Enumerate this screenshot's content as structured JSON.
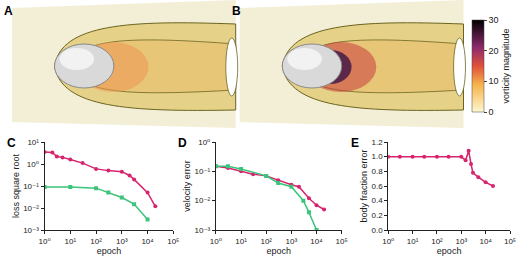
{
  "renderings": [
    {
      "label": "A"
    },
    {
      "label": "B"
    }
  ],
  "colorbar": {
    "label": "vorticity magnitude",
    "range": [
      0,
      30
    ],
    "ticks": [
      0,
      10,
      20,
      30
    ]
  },
  "chart_data": [
    {
      "type": "line",
      "title": "C",
      "x_label": "epoch",
      "y_label": "loss square root",
      "log": true,
      "grid": false,
      "xlim": [
        1,
        100000
      ],
      "xticks": [
        {
          "value": 1,
          "label": "10⁰"
        },
        {
          "value": 10,
          "label": "10¹"
        },
        {
          "value": 100,
          "label": "10²"
        },
        {
          "value": 1000,
          "label": "10³"
        },
        {
          "value": 10000,
          "label": "10⁴"
        },
        {
          "value": 100000,
          "label": "10⁵"
        }
      ],
      "ylim": [
        0.001,
        10
      ],
      "yticks": [
        {
          "value": 0.001,
          "label": "10⁻³"
        },
        {
          "value": 0.01,
          "label": "10⁻²"
        },
        {
          "value": 0.1,
          "label": "10⁻¹"
        },
        {
          "value": 1,
          "label": "10⁰"
        },
        {
          "value": 10,
          "label": "10¹"
        }
      ],
      "series": [
        {
          "color": "#d6246e",
          "marker": "circle",
          "x": [
            1,
            2,
            3,
            5,
            10,
            30,
            100,
            300,
            1000,
            2000,
            3000,
            10000,
            20000
          ],
          "values": [
            3.5,
            3.3,
            2.2,
            2.0,
            1.6,
            1.1,
            0.6,
            0.5,
            0.45,
            0.3,
            0.2,
            0.05,
            0.012
          ]
        },
        {
          "color": "#3cc47a",
          "marker": "square",
          "x": [
            1,
            10,
            100,
            300,
            1000,
            3000,
            10000
          ],
          "values": [
            0.09,
            0.09,
            0.08,
            0.05,
            0.03,
            0.015,
            0.003
          ]
        }
      ]
    },
    {
      "type": "line",
      "title": "D",
      "x_label": "epoch",
      "y_label": "velocity error",
      "log": true,
      "grid": false,
      "xlim": [
        1,
        100000
      ],
      "xticks": [
        {
          "value": 1,
          "label": "10⁰"
        },
        {
          "value": 10,
          "label": "10¹"
        },
        {
          "value": 100,
          "label": "10²"
        },
        {
          "value": 1000,
          "label": "10³"
        },
        {
          "value": 10000,
          "label": "10⁴"
        },
        {
          "value": 100000,
          "label": "10⁵"
        }
      ],
      "ylim": [
        0.001,
        1
      ],
      "yticks": [
        {
          "value": 0.001,
          "label": "10⁻³"
        },
        {
          "value": 0.01,
          "label": "10⁻²"
        },
        {
          "value": 0.1,
          "label": "10⁻¹"
        },
        {
          "value": 1,
          "label": "10⁰"
        }
      ],
      "series": [
        {
          "color": "#d6246e",
          "marker": "circle",
          "x": [
            1,
            3,
            10,
            30,
            100,
            300,
            1000,
            2000,
            5000,
            10000,
            20000
          ],
          "values": [
            0.15,
            0.13,
            0.1,
            0.08,
            0.07,
            0.05,
            0.035,
            0.03,
            0.012,
            0.007,
            0.005
          ]
        },
        {
          "color": "#3cc47a",
          "marker": "square",
          "x": [
            1,
            3,
            10,
            100,
            300,
            1000,
            3000,
            5000,
            10000
          ],
          "values": [
            0.15,
            0.15,
            0.12,
            0.07,
            0.04,
            0.03,
            0.01,
            0.004,
            0.001
          ]
        }
      ]
    },
    {
      "type": "line",
      "title": "E",
      "x_label": "epoch",
      "y_label": "body fraction error",
      "log": "x",
      "grid": false,
      "xlim": [
        1,
        100000
      ],
      "xticks": [
        {
          "value": 1,
          "label": "10⁰"
        },
        {
          "value": 10,
          "label": "10¹"
        },
        {
          "value": 100,
          "label": "10²"
        },
        {
          "value": 1000,
          "label": "10³"
        },
        {
          "value": 10000,
          "label": "10⁴"
        },
        {
          "value": 100000,
          "label": "10⁵"
        }
      ],
      "ylim": [
        0,
        1.2
      ],
      "yticks": [
        {
          "value": 0,
          "label": "0.0"
        },
        {
          "value": 0.2,
          "label": "0.2"
        },
        {
          "value": 0.4,
          "label": "0.4"
        },
        {
          "value": 0.6,
          "label": "0.6"
        },
        {
          "value": 0.8,
          "label": "0.8"
        },
        {
          "value": 1,
          "label": "1.0"
        },
        {
          "value": 1.2,
          "label": "1.2"
        }
      ],
      "series": [
        {
          "color": "#d6246e",
          "marker": "circle",
          "x": [
            1,
            3,
            10,
            30,
            100,
            300,
            1000,
            1500,
            2000,
            2500,
            3000,
            5000,
            10000,
            20000
          ],
          "values": [
            1.0,
            1.0,
            1.0,
            1.0,
            1.0,
            1.0,
            1.0,
            0.95,
            1.08,
            0.9,
            0.78,
            0.72,
            0.65,
            0.6
          ]
        }
      ]
    }
  ]
}
